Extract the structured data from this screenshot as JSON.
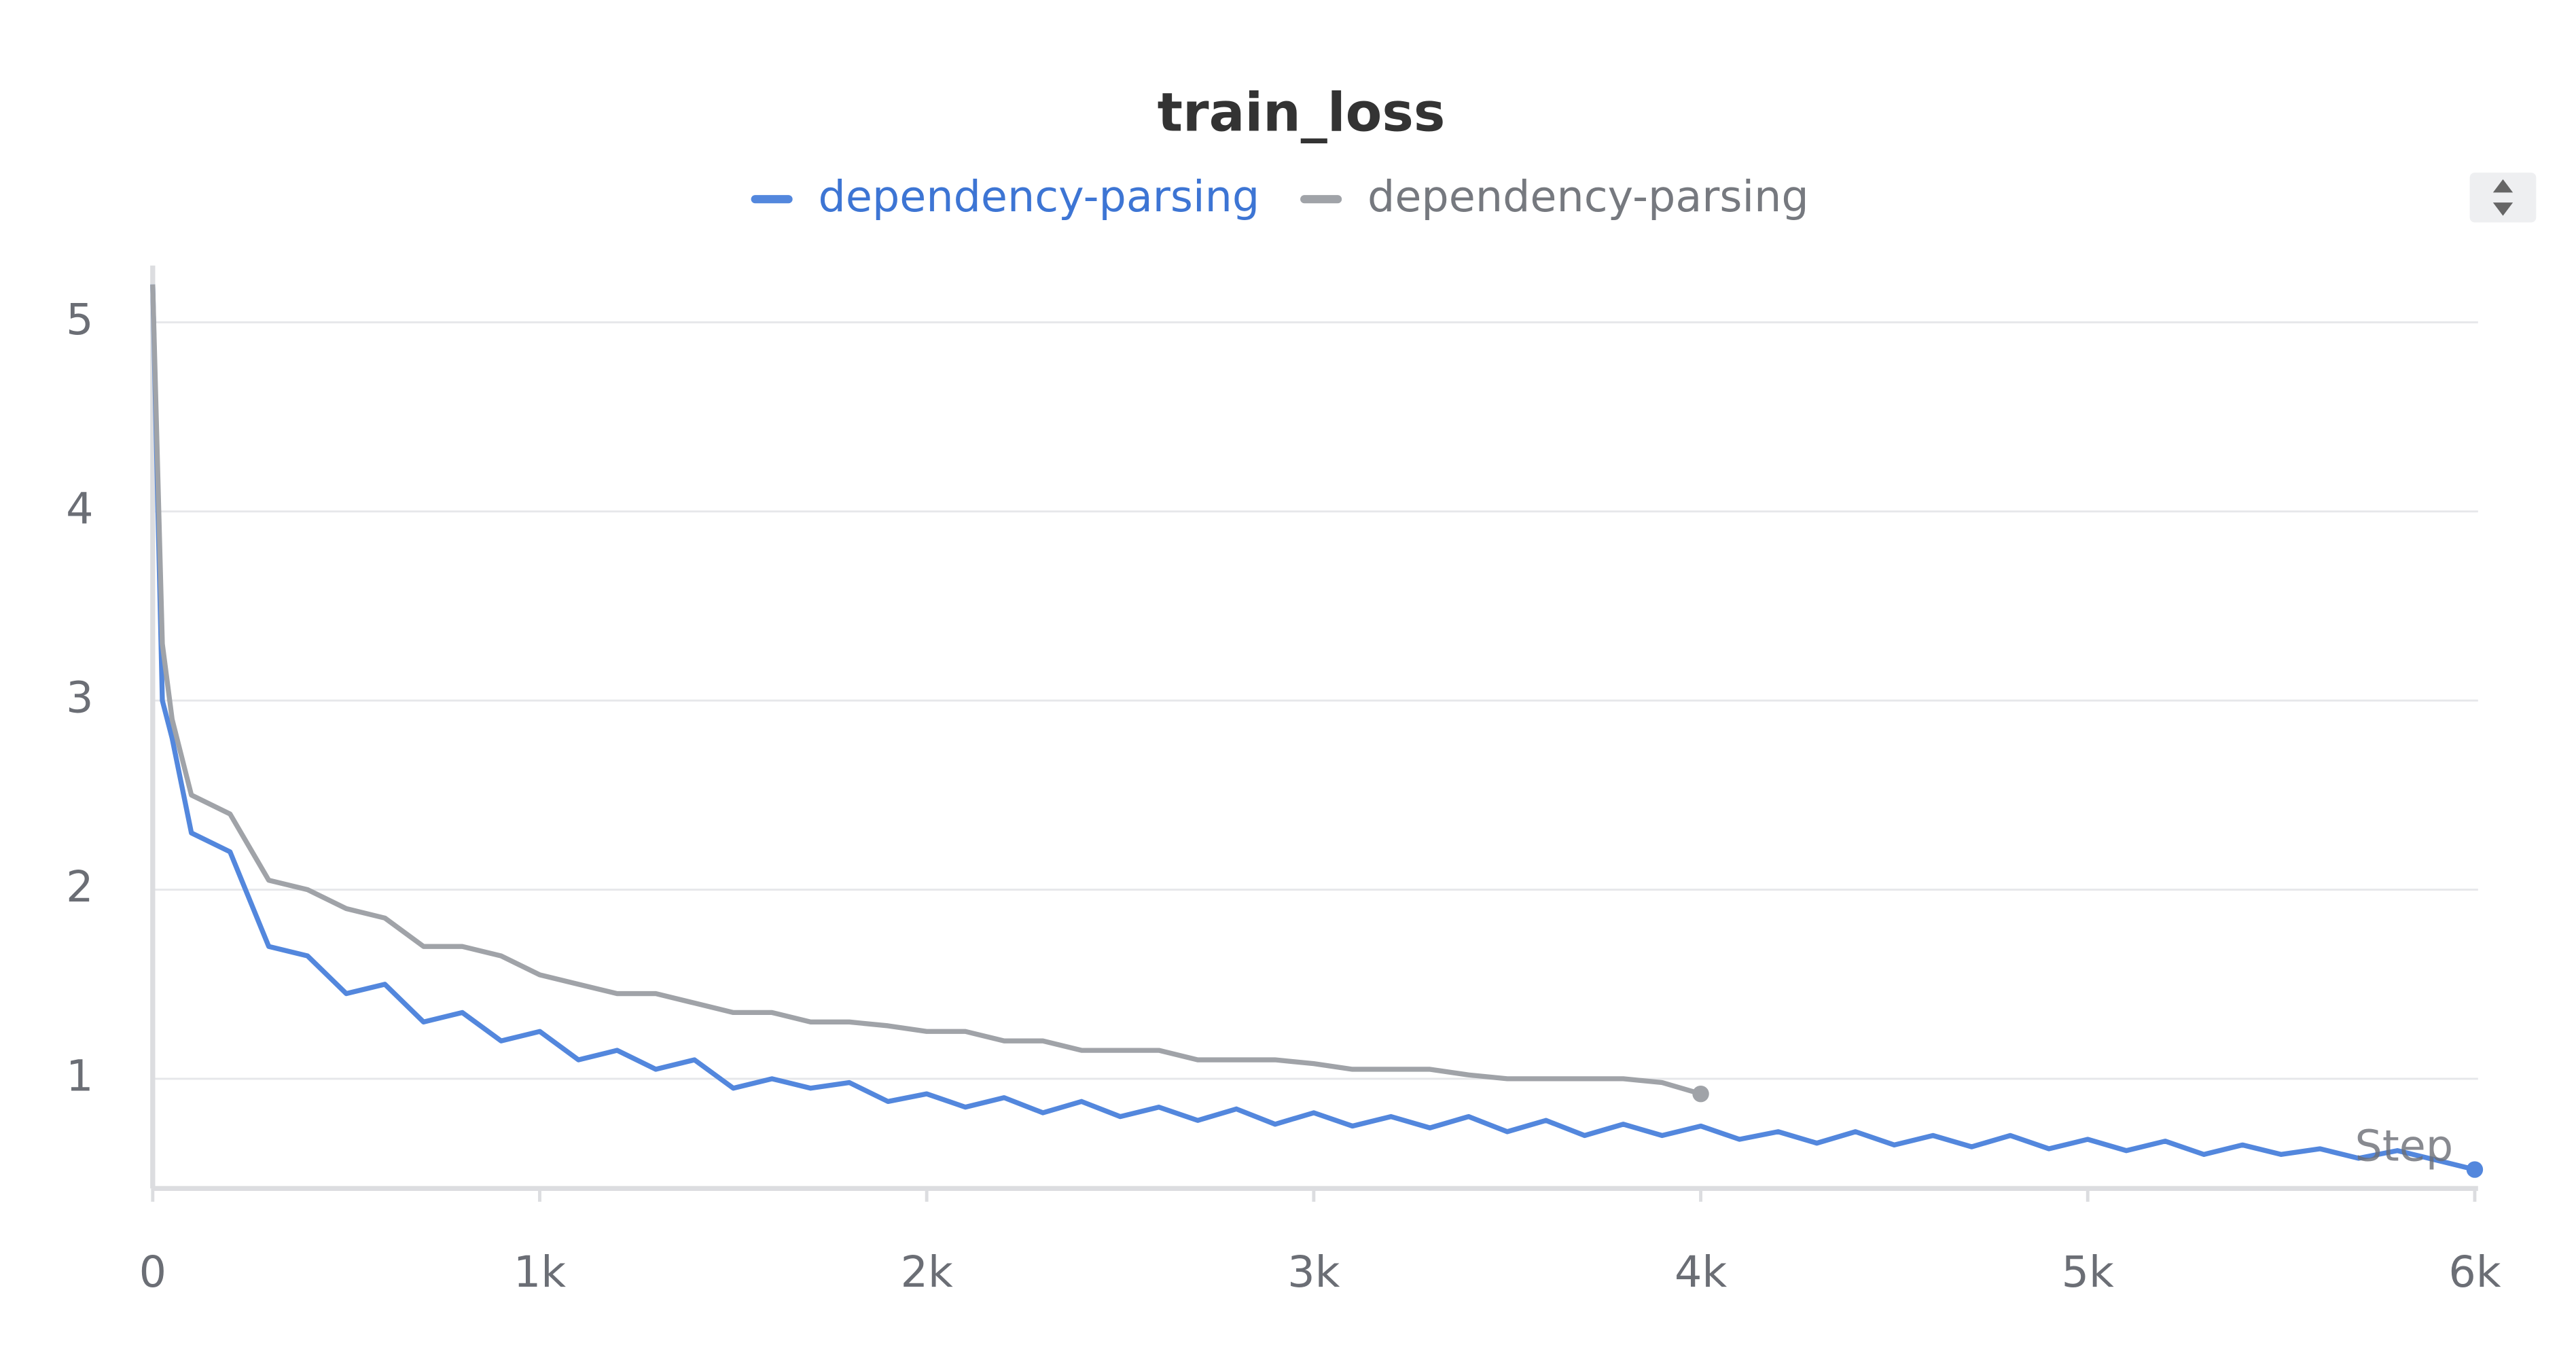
{
  "chart_data": {
    "type": "line",
    "title": "train_loss",
    "x_label": "Step",
    "xlim": [
      0,
      6000
    ],
    "ylim": [
      0.42,
      5.3
    ],
    "xticks": [
      0,
      {
        "value": 1000,
        "label": "1k"
      },
      {
        "value": 2000,
        "label": "2k"
      },
      {
        "value": 3000,
        "label": "3k"
      },
      {
        "value": 4000,
        "label": "4k"
      },
      {
        "value": 5000,
        "label": "5k"
      },
      {
        "value": 6000,
        "label": "6k"
      }
    ],
    "yticks": [
      1,
      2,
      3,
      4,
      5
    ],
    "grid": true,
    "series": [
      {
        "name": "dependency-parsing",
        "color": "#5387dd",
        "x": [
          0,
          25,
          50,
          100,
          200,
          300,
          400,
          500,
          600,
          700,
          800,
          900,
          1000,
          1100,
          1200,
          1300,
          1400,
          1500,
          1600,
          1700,
          1800,
          1900,
          2000,
          2100,
          2200,
          2300,
          2400,
          2500,
          2600,
          2700,
          2800,
          2900,
          3000,
          3100,
          3200,
          3300,
          3400,
          3500,
          3600,
          3700,
          3800,
          3900,
          4000,
          4100,
          4200,
          4300,
          4400,
          4500,
          4600,
          4700,
          4800,
          4900,
          5000,
          5100,
          5200,
          5300,
          5400,
          5500,
          5600,
          5700,
          5800,
          5900,
          6000
        ],
        "values": [
          5.2,
          3.0,
          2.8,
          2.3,
          2.2,
          1.7,
          1.65,
          1.45,
          1.5,
          1.3,
          1.35,
          1.2,
          1.25,
          1.1,
          1.15,
          1.05,
          1.1,
          0.95,
          1.0,
          0.95,
          0.98,
          0.88,
          0.92,
          0.85,
          0.9,
          0.82,
          0.88,
          0.8,
          0.85,
          0.78,
          0.84,
          0.76,
          0.82,
          0.75,
          0.8,
          0.74,
          0.8,
          0.72,
          0.78,
          0.7,
          0.76,
          0.7,
          0.75,
          0.68,
          0.72,
          0.66,
          0.72,
          0.65,
          0.7,
          0.64,
          0.7,
          0.63,
          0.68,
          0.62,
          0.67,
          0.6,
          0.65,
          0.6,
          0.63,
          0.58,
          0.62,
          0.57,
          0.52
        ]
      },
      {
        "name": "dependency-parsing",
        "color": "#a0a3a8",
        "x": [
          0,
          25,
          50,
          100,
          200,
          300,
          400,
          500,
          600,
          700,
          800,
          900,
          1000,
          1100,
          1200,
          1300,
          1400,
          1500,
          1600,
          1700,
          1800,
          1900,
          2000,
          2100,
          2200,
          2300,
          2400,
          2500,
          2600,
          2700,
          2800,
          2900,
          3000,
          3100,
          3200,
          3300,
          3400,
          3500,
          3600,
          3700,
          3800,
          3900,
          4000
        ],
        "values": [
          5.2,
          3.3,
          2.9,
          2.5,
          2.4,
          2.05,
          2.0,
          1.9,
          1.85,
          1.7,
          1.7,
          1.65,
          1.55,
          1.5,
          1.45,
          1.45,
          1.4,
          1.35,
          1.35,
          1.3,
          1.3,
          1.28,
          1.25,
          1.25,
          1.2,
          1.2,
          1.15,
          1.15,
          1.15,
          1.1,
          1.1,
          1.1,
          1.08,
          1.05,
          1.05,
          1.05,
          1.02,
          1.0,
          1.0,
          1.0,
          1.0,
          0.98,
          0.92
        ]
      }
    ]
  }
}
